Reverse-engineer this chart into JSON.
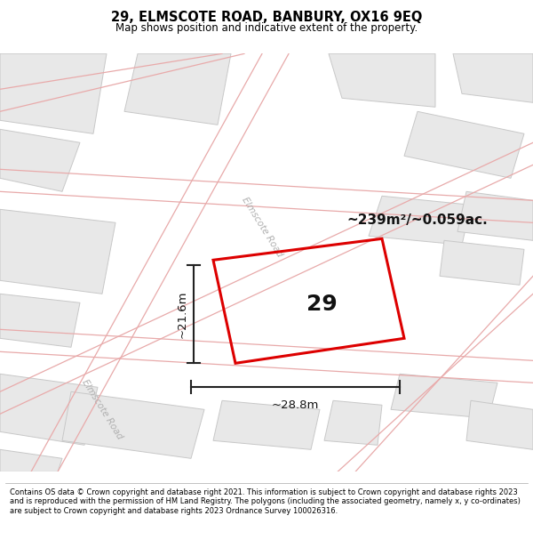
{
  "title": "29, ELMSCOTE ROAD, BANBURY, OX16 9EQ",
  "subtitle": "Map shows position and indicative extent of the property.",
  "copyright_text": "Contains OS data © Crown copyright and database right 2021. This information is subject to Crown copyright and database rights 2023 and is reproduced with the permission of HM Land Registry. The polygons (including the associated geometry, namely x, y co-ordinates) are subject to Crown copyright and database rights 2023 Ordnance Survey 100026316.",
  "area_text": "~239m²/~0.059ac.",
  "dim_width": "~28.8m",
  "dim_height": "~21.6m",
  "property_number": "29",
  "road_label_1": "Elmscote Road",
  "road_label_2": "Elmscote Road",
  "building_fill": "#e8e8e8",
  "building_edge": "#c8c8c8",
  "road_line_color": "#e8aaaa",
  "property_edge_color": "#dd0000",
  "bg_color": "#ffffff",
  "map_bg": "#f9f9f9"
}
